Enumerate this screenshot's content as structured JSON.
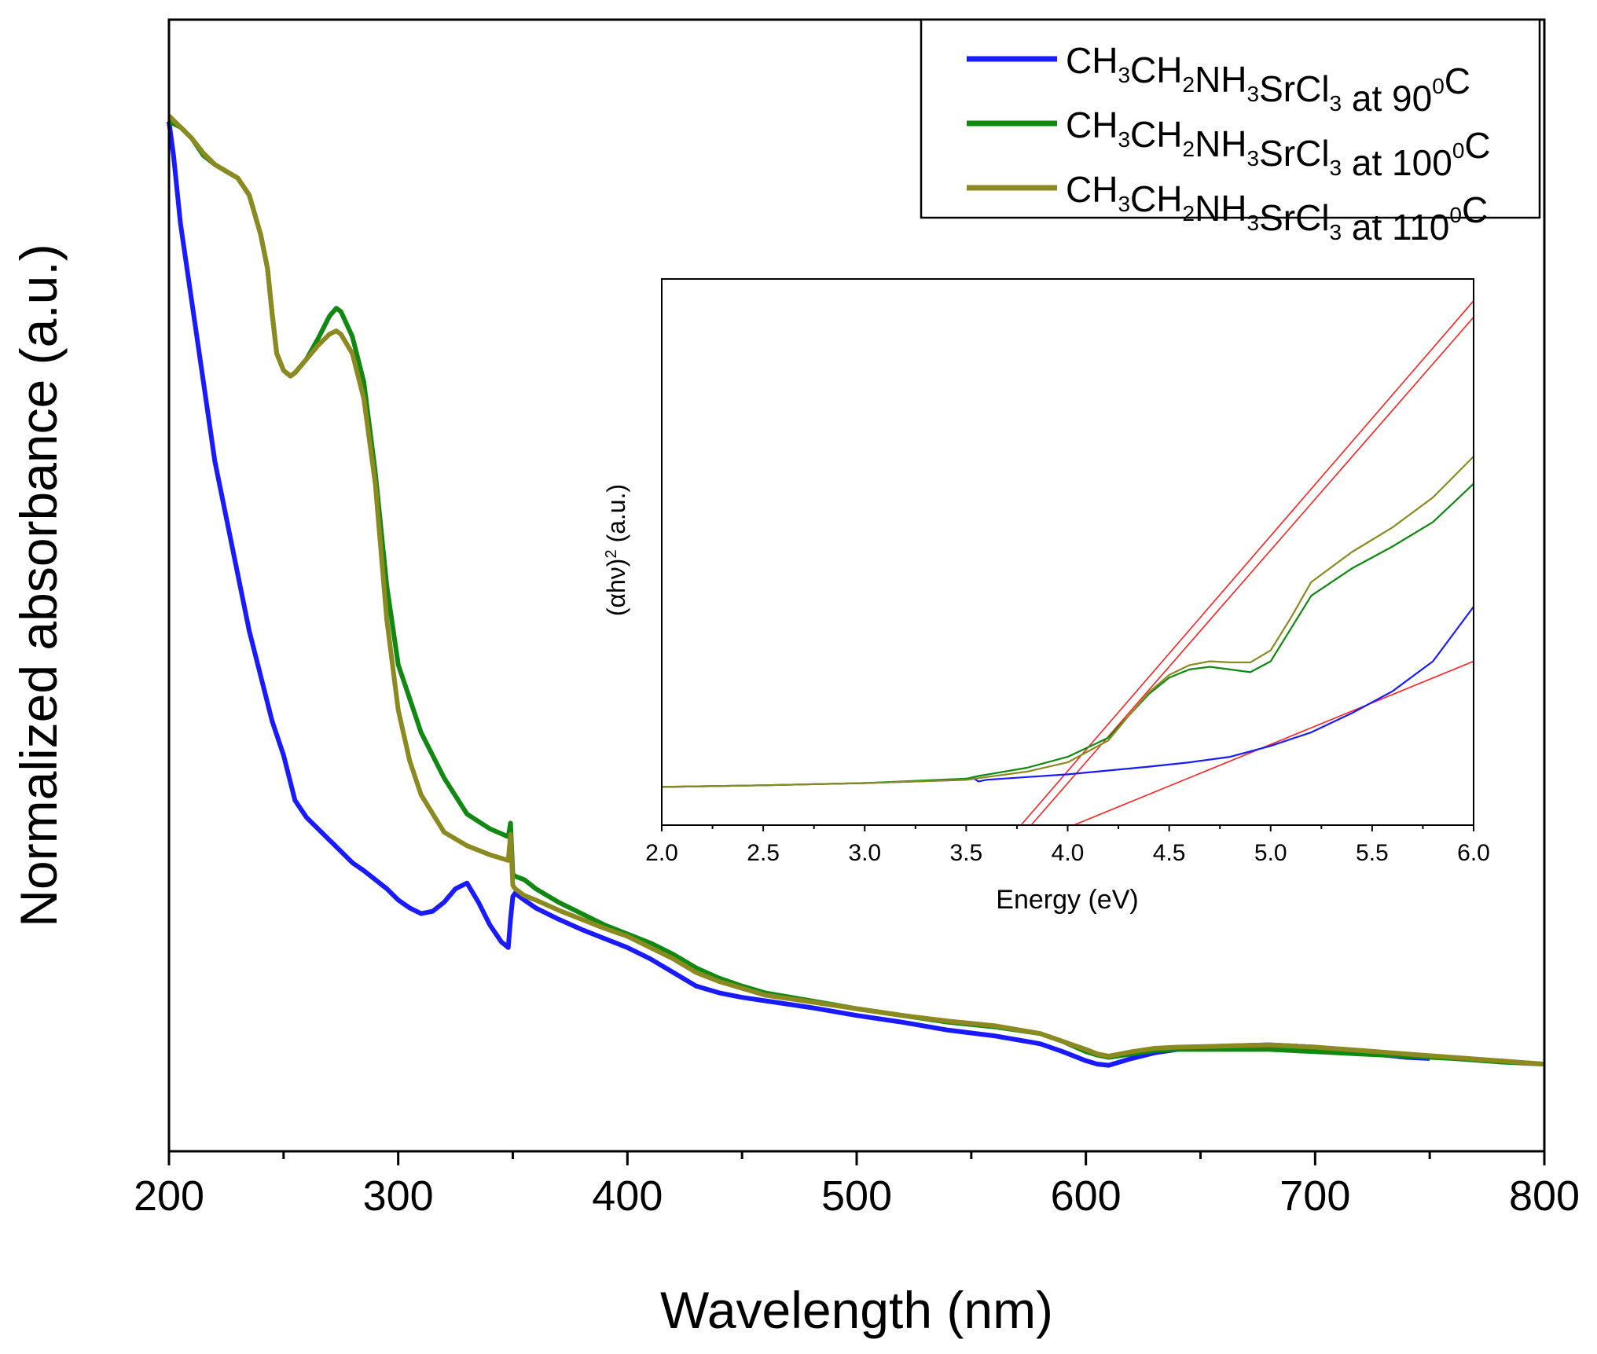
{
  "chart_data": [
    {
      "type": "line",
      "xlabel": "Wavelength (nm)",
      "ylabel": "Normalized absorbance (a.u.)",
      "xlim": [
        200,
        800
      ],
      "ylim": [
        0,
        1.0
      ],
      "xticks": [
        200,
        300,
        400,
        500,
        600,
        700,
        800
      ],
      "xtick_labels": [
        "200",
        "300",
        "400",
        "500",
        "600",
        "700",
        "800"
      ],
      "yticks_shown": false,
      "legend": {
        "placement": "top-right"
      },
      "series": [
        {
          "name": "CH3CH2NH3SrCl3 at 90°C",
          "legend_parts": {
            "base": "CH",
            "s1": "3",
            "m1": "CH",
            "s2": "2",
            "m2": "NH",
            "s3": "3",
            "m3": "SrCl",
            "s4": "3",
            "tail": " at 90",
            "deg": "0",
            "unit": "C"
          },
          "color": "#1a1aff",
          "x": [
            200,
            202,
            205,
            210,
            215,
            220,
            225,
            230,
            235,
            240,
            245,
            250,
            255,
            260,
            265,
            270,
            275,
            280,
            285,
            290,
            295,
            300,
            305,
            310,
            315,
            320,
            325,
            330,
            335,
            340,
            345,
            348,
            349,
            350,
            351,
            355,
            360,
            370,
            380,
            390,
            400,
            410,
            420,
            430,
            440,
            450,
            460,
            480,
            500,
            520,
            540,
            560,
            580,
            590,
            600,
            605,
            610,
            620,
            630,
            640,
            660,
            680,
            700,
            720,
            740,
            750
          ],
          "y": [
            0.91,
            0.88,
            0.82,
            0.75,
            0.68,
            0.61,
            0.56,
            0.51,
            0.46,
            0.42,
            0.38,
            0.35,
            0.31,
            0.295,
            0.285,
            0.275,
            0.265,
            0.255,
            0.248,
            0.24,
            0.232,
            0.222,
            0.215,
            0.21,
            0.212,
            0.22,
            0.232,
            0.237,
            0.22,
            0.2,
            0.185,
            0.18,
            0.205,
            0.225,
            0.228,
            0.222,
            0.215,
            0.205,
            0.196,
            0.188,
            0.18,
            0.17,
            0.158,
            0.146,
            0.14,
            0.136,
            0.133,
            0.127,
            0.12,
            0.114,
            0.107,
            0.102,
            0.095,
            0.088,
            0.08,
            0.077,
            0.076,
            0.082,
            0.087,
            0.09,
            0.093,
            0.094,
            0.092,
            0.087,
            0.083,
            0.082
          ]
        },
        {
          "name": "CH3CH2NH3SrCl3 at 100°C",
          "legend_parts": {
            "base": "CH",
            "s1": "3",
            "m1": "CH",
            "s2": "2",
            "m2": "NH",
            "s3": "3",
            "m3": "SrCl",
            "s4": "3",
            "tail": " at 100",
            "deg": "0",
            "unit": "C"
          },
          "color": "#118811",
          "x": [
            200,
            205,
            210,
            215,
            220,
            225,
            230,
            235,
            240,
            243,
            245,
            247,
            250,
            253,
            255,
            260,
            265,
            270,
            273,
            275,
            280,
            285,
            290,
            295,
            300,
            305,
            310,
            320,
            330,
            340,
            348,
            349,
            350,
            351,
            355,
            360,
            370,
            380,
            390,
            400,
            410,
            420,
            430,
            440,
            450,
            460,
            480,
            500,
            520,
            540,
            560,
            580,
            590,
            600,
            605,
            610,
            620,
            630,
            640,
            660,
            680,
            700,
            720,
            740,
            760,
            780,
            800
          ],
          "y": [
            0.91,
            0.905,
            0.895,
            0.88,
            0.872,
            0.866,
            0.86,
            0.845,
            0.81,
            0.78,
            0.74,
            0.705,
            0.69,
            0.685,
            0.688,
            0.7,
            0.718,
            0.738,
            0.745,
            0.742,
            0.72,
            0.68,
            0.6,
            0.5,
            0.43,
            0.4,
            0.37,
            0.33,
            0.298,
            0.285,
            0.278,
            0.29,
            0.245,
            0.243,
            0.24,
            0.232,
            0.22,
            0.21,
            0.2,
            0.192,
            0.184,
            0.174,
            0.162,
            0.153,
            0.146,
            0.14,
            0.133,
            0.126,
            0.12,
            0.114,
            0.11,
            0.104,
            0.097,
            0.088,
            0.085,
            0.083,
            0.086,
            0.089,
            0.09,
            0.09,
            0.09,
            0.088,
            0.086,
            0.084,
            0.082,
            0.079,
            0.077
          ]
        },
        {
          "name": "CH3CH2NH3SrCl3 at 110°C",
          "legend_parts": {
            "base": "CH",
            "s1": "3",
            "m1": "CH",
            "s2": "2",
            "m2": "NH",
            "s3": "3",
            "m3": "SrCl",
            "s4": "3",
            "tail": " at 110",
            "deg": "0",
            "unit": "C"
          },
          "color": "#8a8a20",
          "x": [
            200,
            205,
            210,
            215,
            220,
            225,
            230,
            235,
            240,
            243,
            245,
            247,
            250,
            253,
            255,
            260,
            265,
            270,
            273,
            275,
            280,
            285,
            290,
            295,
            300,
            305,
            310,
            320,
            330,
            340,
            348,
            349,
            350,
            351,
            355,
            360,
            370,
            380,
            390,
            400,
            410,
            420,
            430,
            440,
            450,
            460,
            480,
            500,
            520,
            540,
            560,
            580,
            590,
            600,
            605,
            610,
            620,
            630,
            640,
            660,
            680,
            700,
            720,
            740,
            760,
            780,
            800
          ],
          "y": [
            0.915,
            0.905,
            0.895,
            0.882,
            0.872,
            0.866,
            0.86,
            0.845,
            0.81,
            0.78,
            0.74,
            0.705,
            0.69,
            0.685,
            0.688,
            0.7,
            0.712,
            0.722,
            0.725,
            0.722,
            0.705,
            0.665,
            0.59,
            0.47,
            0.39,
            0.345,
            0.315,
            0.282,
            0.27,
            0.262,
            0.257,
            0.28,
            0.235,
            0.232,
            0.226,
            0.222,
            0.213,
            0.205,
            0.197,
            0.19,
            0.18,
            0.17,
            0.158,
            0.15,
            0.144,
            0.138,
            0.132,
            0.126,
            0.12,
            0.115,
            0.111,
            0.104,
            0.097,
            0.09,
            0.086,
            0.084,
            0.088,
            0.091,
            0.092,
            0.093,
            0.094,
            0.092,
            0.089,
            0.086,
            0.083,
            0.08,
            0.077
          ]
        }
      ]
    },
    {
      "type": "line",
      "role": "inset",
      "xlabel": "Energy (eV)",
      "ylabel": "(αhν)² (a.u.)",
      "ylabel_parts": {
        "pre": "(αhν)",
        "sup": "2",
        "post": " (a.u.)"
      },
      "xlim": [
        2.0,
        6.0
      ],
      "ylim": [
        0,
        1.0
      ],
      "xticks": [
        2.0,
        2.5,
        3.0,
        3.5,
        4.0,
        4.5,
        5.0,
        5.5,
        6.0
      ],
      "xtick_labels": [
        "2.0",
        "2.5",
        "3.0",
        "3.5",
        "4.0",
        "4.5",
        "5.0",
        "5.5",
        "6.0"
      ],
      "yticks_shown": false,
      "series": [
        {
          "name": "90°C",
          "color": "#1a1aff",
          "x": [
            2.0,
            2.5,
            3.0,
            3.5,
            3.54,
            3.56,
            3.6,
            3.8,
            4.0,
            4.2,
            4.4,
            4.6,
            4.8,
            5.0,
            5.2,
            5.4,
            5.6,
            5.8,
            6.0
          ],
          "y": [
            0.07,
            0.073,
            0.077,
            0.083,
            0.085,
            0.08,
            0.083,
            0.088,
            0.093,
            0.1,
            0.107,
            0.115,
            0.125,
            0.145,
            0.17,
            0.205,
            0.245,
            0.3,
            0.4
          ]
        },
        {
          "name": "100°C",
          "color": "#118811",
          "x": [
            2.0,
            2.5,
            3.0,
            3.5,
            3.56,
            3.8,
            4.0,
            4.2,
            4.3,
            4.4,
            4.5,
            4.6,
            4.7,
            4.8,
            4.9,
            5.0,
            5.1,
            5.2,
            5.4,
            5.6,
            5.8,
            6.0
          ],
          "y": [
            0.07,
            0.073,
            0.077,
            0.085,
            0.09,
            0.105,
            0.125,
            0.16,
            0.2,
            0.24,
            0.27,
            0.285,
            0.29,
            0.285,
            0.28,
            0.3,
            0.36,
            0.42,
            0.47,
            0.51,
            0.555,
            0.625
          ]
        },
        {
          "name": "110°C",
          "color": "#8a8a20",
          "x": [
            2.0,
            2.5,
            3.0,
            3.5,
            3.56,
            3.8,
            4.0,
            4.2,
            4.3,
            4.4,
            4.5,
            4.6,
            4.7,
            4.8,
            4.9,
            5.0,
            5.1,
            5.2,
            5.4,
            5.6,
            5.8,
            6.0
          ],
          "y": [
            0.07,
            0.073,
            0.077,
            0.083,
            0.086,
            0.098,
            0.115,
            0.155,
            0.2,
            0.243,
            0.275,
            0.293,
            0.3,
            0.298,
            0.298,
            0.32,
            0.38,
            0.445,
            0.5,
            0.545,
            0.6,
            0.675
          ]
        }
      ],
      "fit_lines": [
        {
          "color": "#ff2020",
          "x": [
            3.77,
            6.0
          ],
          "y": [
            0.0,
            0.96
          ]
        },
        {
          "color": "#ff2020",
          "x": [
            3.82,
            6.0
          ],
          "y": [
            0.0,
            0.93
          ]
        },
        {
          "color": "#ff2020",
          "x": [
            4.03,
            6.0
          ],
          "y": [
            0.0,
            0.3
          ]
        }
      ]
    }
  ]
}
